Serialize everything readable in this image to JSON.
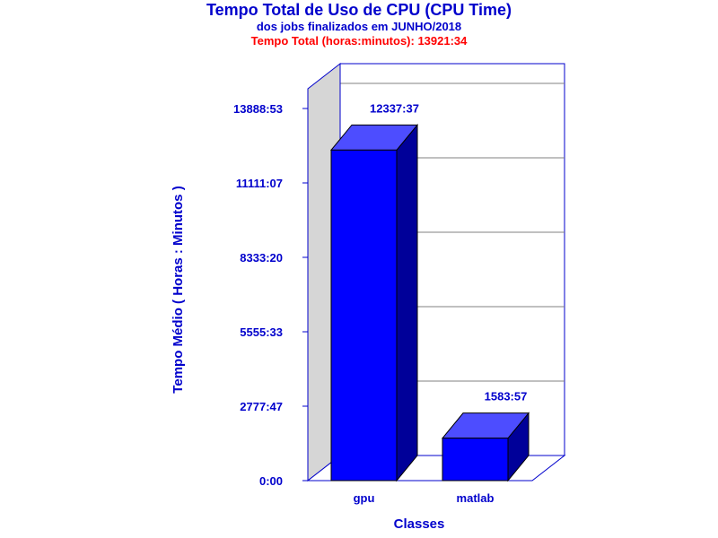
{
  "chart_data": {
    "type": "bar",
    "title": "Tempo Total de Uso de CPU (CPU Time)",
    "subtitle": "dos jobs finalizados em JUNHO/2018",
    "total_label": "Tempo Total (horas:minutos): 13921:34",
    "xlabel": "Classes",
    "ylabel": "Tempo Médio ( Horas : Minutos )",
    "categories": [
      "gpu",
      "matlab"
    ],
    "values": [
      740257,
      95037
    ],
    "value_labels": [
      "12337:37",
      "1583:57"
    ],
    "ylim": [
      0,
      833333
    ],
    "yticks": [
      0,
      166667,
      333333,
      500000,
      666667,
      833333
    ],
    "ytick_labels": [
      "0:00",
      "2777:47",
      "5555:33",
      "8333:20",
      "11111:07",
      "13888:53"
    ],
    "grid": true,
    "colors": {
      "title": "#0000cc",
      "total": "#ff0000",
      "axis_text": "#0000cc",
      "frame": "#0000cc",
      "grid": "#808080",
      "wall": "#d6d6d6",
      "bar_front": "#0000ff",
      "bar_top": "#4d4dff",
      "bar_side": "#000099"
    }
  }
}
